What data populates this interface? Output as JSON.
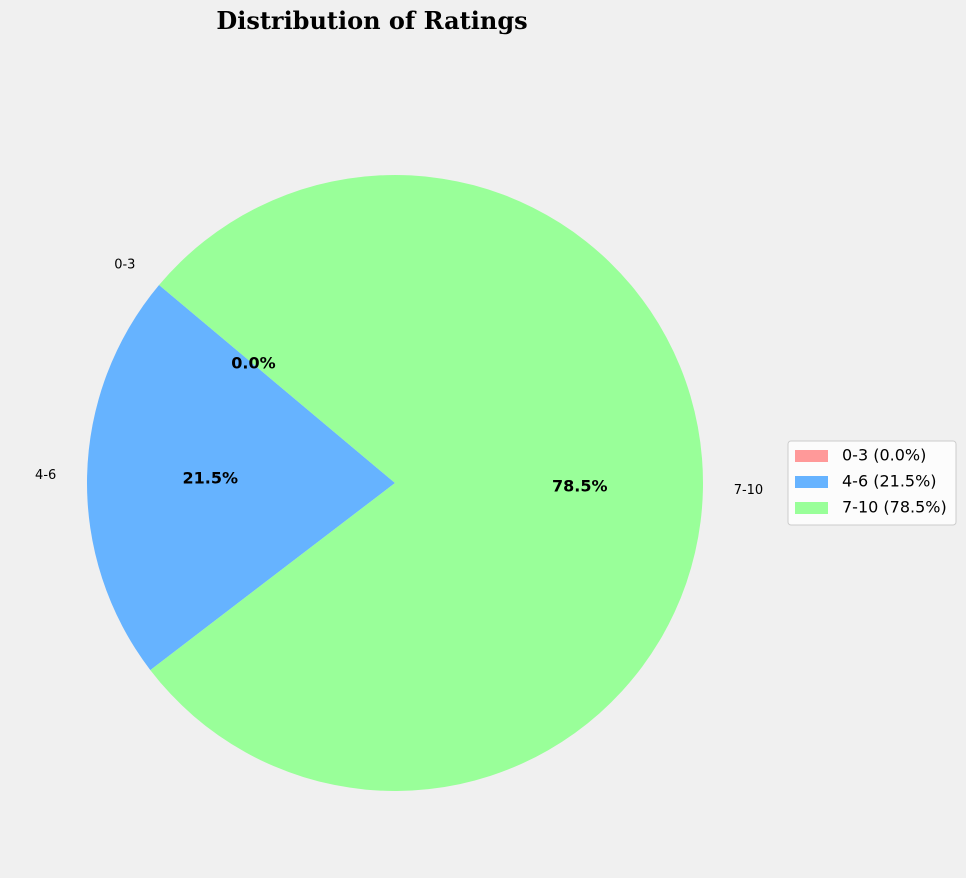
{
  "chart_data": {
    "type": "pie",
    "title": "Distribution of Ratings",
    "categories": [
      "0-3",
      "4-6",
      "7-10"
    ],
    "values": [
      0.0,
      21.5,
      78.5
    ],
    "percent_labels": [
      "0.0%",
      "21.5%",
      "78.5%"
    ],
    "colors": [
      "#ff9999",
      "#66b3ff",
      "#99ff99"
    ],
    "start_angle_deg": 140,
    "direction": "counterclockwise",
    "legend": {
      "placement": "right",
      "entries": [
        "0-3 (0.0%)",
        "4-6 (21.5%)",
        "7-10 (78.5%)"
      ]
    },
    "background": "#f0f0f0"
  }
}
